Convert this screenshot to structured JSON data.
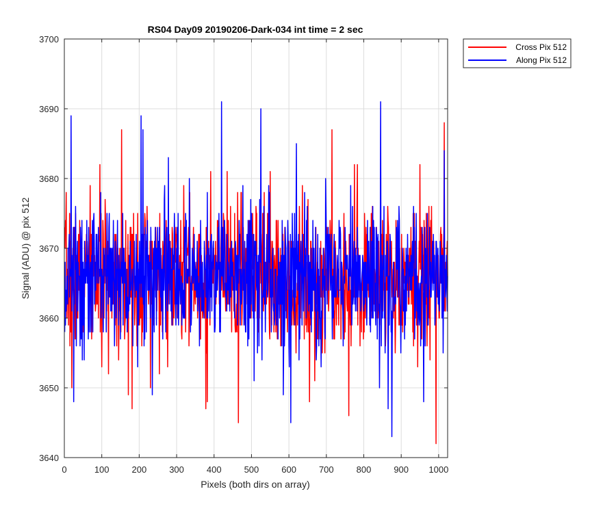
{
  "chart_data": {
    "type": "line",
    "title": "RS04 Day09 20190206-Dark-034 int time = 2 sec",
    "xlabel": "Pixels (both dirs on array)",
    "ylabel": "Signal (ADU) @ pix 512",
    "xlim": [
      0,
      1024
    ],
    "ylim": [
      3640,
      3700
    ],
    "x_ticks": [
      0,
      100,
      200,
      300,
      400,
      500,
      600,
      700,
      800,
      900,
      1000
    ],
    "y_ticks": [
      3640,
      3650,
      3660,
      3670,
      3680,
      3690,
      3700
    ],
    "grid": true,
    "legend_position": "outside-top-right",
    "x_range": [
      1,
      1024
    ],
    "series": [
      {
        "name": "Cross Pix 512",
        "color": "#ff0000",
        "mean": 3666,
        "noise_std": 5,
        "seed": 7,
        "notable_points": [
          [
            20,
            3650
          ],
          [
            153,
            3687
          ],
          [
            171,
            3649
          ],
          [
            181,
            3647
          ],
          [
            230,
            3650
          ],
          [
            378,
            3647
          ],
          [
            382,
            3648
          ],
          [
            465,
            3645
          ],
          [
            550,
            3681
          ],
          [
            655,
            3648
          ],
          [
            715,
            3687
          ],
          [
            760,
            3646
          ],
          [
            775,
            3682
          ],
          [
            950,
            3682
          ],
          [
            993,
            3642
          ],
          [
            1015,
            3688
          ]
        ]
      },
      {
        "name": "Along Pix 512",
        "color": "#0000ff",
        "mean": 3666,
        "noise_std": 5,
        "seed": 13,
        "notable_points": [
          [
            18,
            3689
          ],
          [
            25,
            3648
          ],
          [
            205,
            3689
          ],
          [
            210,
            3687
          ],
          [
            235,
            3649
          ],
          [
            420,
            3691
          ],
          [
            525,
            3690
          ],
          [
            585,
            3649
          ],
          [
            605,
            3645
          ],
          [
            620,
            3685
          ],
          [
            845,
            3691
          ],
          [
            865,
            3647
          ],
          [
            875,
            3643
          ],
          [
            960,
            3648
          ],
          [
            1015,
            3684
          ]
        ]
      }
    ]
  }
}
